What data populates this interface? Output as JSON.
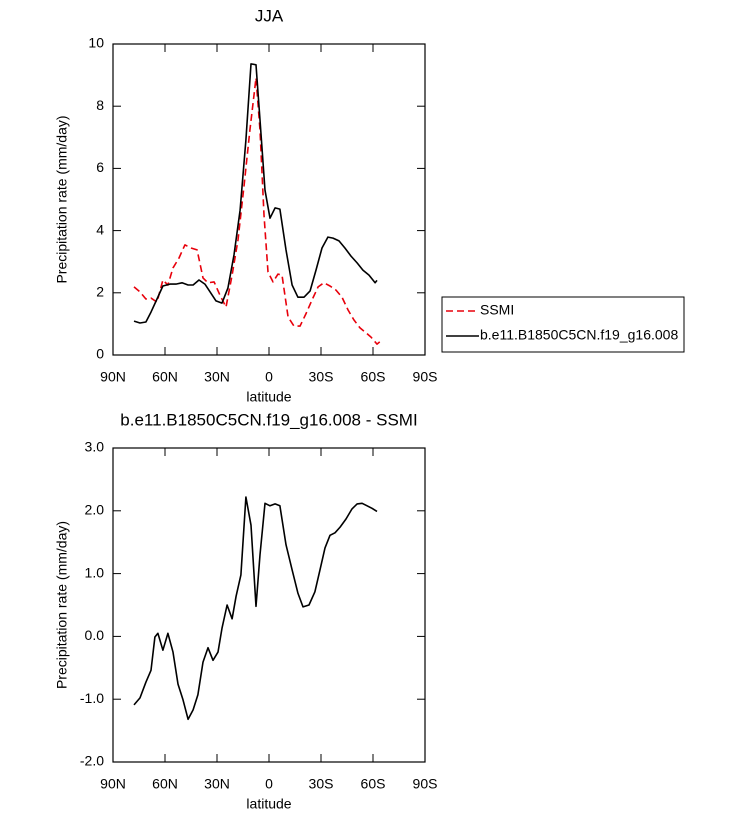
{
  "chart_data": [
    {
      "type": "line",
      "title": "JJA",
      "xlabel": "latitude",
      "ylabel": "Precipitation rate (mm/day)",
      "xlim": [
        90,
        -90
      ],
      "xticks": [
        {
          "value": 90,
          "label": "90N"
        },
        {
          "value": 60,
          "label": "60N"
        },
        {
          "value": 30,
          "label": "30N"
        },
        0,
        {
          "value": -30,
          "label": "30S"
        },
        {
          "value": -60,
          "label": "60S"
        },
        {
          "value": -90,
          "label": "90S"
        }
      ],
      "ylim": [
        0,
        10
      ],
      "yticks": [
        0,
        2,
        4,
        6,
        8,
        10
      ],
      "legend": "right",
      "series": [
        {
          "name": "SSMI",
          "color": "#e8000b",
          "line_style": "dashed",
          "x": [
            77.9,
            74.4,
            71.0,
            68.1,
            64.6,
            61.2,
            58.3,
            55.4,
            51.9,
            48.5,
            45.0,
            41.5,
            38.1,
            35.2,
            31.7,
            28.3,
            24.8,
            21.3,
            17.9,
            14.4,
            11.0,
            7.5,
            5.2,
            2.9,
            0.6,
            -2.3,
            -5.2,
            -7.5,
            -11.0,
            -14.4,
            -17.9,
            -21.3,
            -24.8,
            -28.3,
            -31.7,
            -35.2,
            -38.6,
            -42.1,
            -45.6,
            -49.0,
            -52.5,
            -56.0,
            -58.8,
            -62.3,
            -65.2
          ],
          "values": [
            2.19,
            2.03,
            1.8,
            1.83,
            1.7,
            2.41,
            2.25,
            2.8,
            3.12,
            3.54,
            3.44,
            3.38,
            2.48,
            2.32,
            2.35,
            1.93,
            1.54,
            2.57,
            3.7,
            5.43,
            7.23,
            8.91,
            7.23,
            4.5,
            2.67,
            2.35,
            2.6,
            2.57,
            1.22,
            0.93,
            0.93,
            1.32,
            1.77,
            2.19,
            2.32,
            2.22,
            2.09,
            1.86,
            1.45,
            1.13,
            0.87,
            0.71,
            0.58,
            0.35,
            0.48
          ]
        },
        {
          "name": "b.e11.B1850C5CN.f19_g16.008",
          "color": "#000000",
          "line_style": "solid",
          "x": [
            77.9,
            74.4,
            71.0,
            68.1,
            64.6,
            61.2,
            57.1,
            53.7,
            50.2,
            46.7,
            43.8,
            40.4,
            37.0,
            34.0,
            30.6,
            27.1,
            23.7,
            20.2,
            16.7,
            13.3,
            10.4,
            7.5,
            5.2,
            2.3,
            -0.6,
            -3.5,
            -6.3,
            -9.8,
            -13.3,
            -16.7,
            -20.2,
            -23.7,
            -27.1,
            -30.6,
            -34.0,
            -36.9,
            -40.4,
            -43.8,
            -47.3,
            -50.8,
            -54.2,
            -57.7,
            -61.2,
            -62.3
          ],
          "values": [
            1.09,
            1.03,
            1.06,
            1.38,
            1.8,
            2.22,
            2.28,
            2.28,
            2.32,
            2.25,
            2.25,
            2.41,
            2.28,
            2.03,
            1.74,
            1.67,
            2.15,
            3.22,
            4.66,
            6.91,
            9.36,
            9.33,
            7.56,
            5.3,
            4.4,
            4.73,
            4.69,
            3.38,
            2.25,
            1.86,
            1.86,
            2.06,
            2.73,
            3.44,
            3.79,
            3.76,
            3.67,
            3.44,
            3.18,
            2.96,
            2.73,
            2.57,
            2.32,
            2.4
          ]
        }
      ]
    },
    {
      "type": "line",
      "title": "b.e11.B1850C5CN.f19_g16.008 - SSMI",
      "xlabel": "latitude",
      "ylabel": "Precipitation rate (mm/day)",
      "xlim": [
        90,
        -90
      ],
      "xticks": [
        {
          "value": 90,
          "label": "90N"
        },
        {
          "value": 60,
          "label": "60N"
        },
        {
          "value": 30,
          "label": "30N"
        },
        0,
        {
          "value": -30,
          "label": "30S"
        },
        {
          "value": -60,
          "label": "60S"
        },
        {
          "value": -90,
          "label": "90S"
        }
      ],
      "ylim": [
        -2,
        3
      ],
      "yticks": [
        {
          "value": -2,
          "label": "-2.0"
        },
        {
          "value": -1,
          "label": "-1.0"
        },
        {
          "value": 0,
          "label": "0.0"
        },
        {
          "value": 1,
          "label": "1.0"
        },
        {
          "value": 2,
          "label": "2.0"
        },
        {
          "value": 3,
          "label": "3.0"
        }
      ],
      "series": [
        {
          "color": "#000000",
          "line_style": "solid",
          "x": [
            77.9,
            74.4,
            71.0,
            68.1,
            65.8,
            64.1,
            61.2,
            58.3,
            55.4,
            52.5,
            49.6,
            46.7,
            43.8,
            41.0,
            38.1,
            35.2,
            32.3,
            29.4,
            27.1,
            24.2,
            21.3,
            19.0,
            16.2,
            13.3,
            10.4,
            7.5,
            5.2,
            2.3,
            -0.6,
            -3.5,
            -6.3,
            -9.8,
            -13.3,
            -16.7,
            -19.6,
            -23.1,
            -26.5,
            -29.4,
            -32.3,
            -35.2,
            -38.1,
            -41.0,
            -44.4,
            -47.9,
            -50.8,
            -53.7,
            -56.6,
            -59.4,
            -62.3
          ],
          "values": [
            -1.09,
            -0.98,
            -0.73,
            -0.54,
            -0.01,
            0.05,
            -0.22,
            0.05,
            -0.25,
            -0.76,
            -1.01,
            -1.32,
            -1.17,
            -0.93,
            -0.41,
            -0.18,
            -0.38,
            -0.25,
            0.13,
            0.5,
            0.28,
            0.64,
            0.98,
            2.22,
            1.77,
            0.48,
            1.3,
            2.12,
            2.08,
            2.11,
            2.08,
            1.46,
            1.06,
            0.69,
            0.47,
            0.5,
            0.71,
            1.06,
            1.41,
            1.61,
            1.65,
            1.74,
            1.87,
            2.03,
            2.11,
            2.12,
            2.08,
            2.04,
            1.99
          ]
        }
      ]
    }
  ]
}
